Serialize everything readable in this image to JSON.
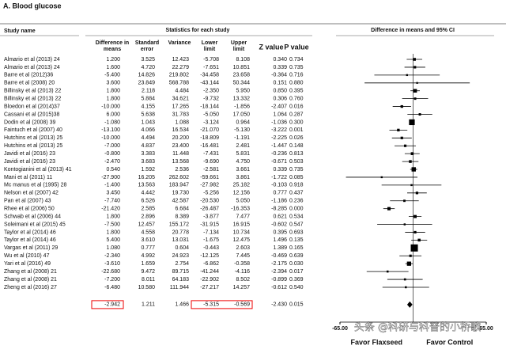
{
  "chart_data": {
    "type": "forest",
    "title": "A. Blood glucose",
    "study_header": "Study name",
    "stats_header": "Statistics for each study",
    "plot_header": "Difference in means and 95% CI",
    "columns": [
      "Difference in means",
      "Standard error",
      "Variance",
      "Lower limit",
      "Upper limit",
      "Z value",
      "P value"
    ],
    "categories": [
      "Almario et al (2013) 24",
      "Almario et al (2013) 24",
      "Barre et al (2012)36",
      "Barre et al (2008) 20",
      "Billinsky et al (2013) 22",
      "Billinsky et al (2013) 22",
      "Bloedon et al (2014)37",
      "Cassani et al (2015)38",
      "Dodin et al (2008) 39",
      "Faintuch et al (2007) 40",
      "Hutchins et al (2013) 25",
      "Hutchins et al (2013) 25",
      "Javidi et al (2016) 23",
      "Javidi et al (2016) 23",
      "Kontogianini et al (2013) 41",
      "Mani et al (2011) 11",
      "Mc manus et al (1995) 28",
      "Nelson et al (2007) 42",
      "Pan et al (2007) 43",
      "Rhee et al (2006) 50",
      "Schwab et al (2006) 44",
      "Soleimani et al (2015) 45",
      "Taylor et al (2014) 46",
      "Taylor et al (2014) 46",
      "Vargas et al (2011) 29",
      "Wu et al (2010) 47",
      "Yari et al (2016) 49",
      "Zhang et al (2008) 21",
      "Zhang et al (2008) 21",
      "Zheng et al (2016) 27"
    ],
    "rows": [
      [
        "1.200",
        "3.525",
        "12.423",
        "-5.708",
        "8.108",
        "0.340",
        "0.734"
      ],
      [
        "1.600",
        "4.720",
        "22.279",
        "-7.651",
        "10.851",
        "0.339",
        "0.735"
      ],
      [
        "-5.400",
        "14.826",
        "219.802",
        "-34.458",
        "23.658",
        "-0.364",
        "0.716"
      ],
      [
        "3.600",
        "23.849",
        "568.788",
        "-43.144",
        "50.344",
        "0.151",
        "0.880"
      ],
      [
        "1.800",
        "2.118",
        "4.484",
        "-2.350",
        "5.950",
        "0.850",
        "0.395"
      ],
      [
        "1.800",
        "5.884",
        "34.621",
        "-9.732",
        "13.332",
        "0.306",
        "0.760"
      ],
      [
        "-10.000",
        "4.155",
        "17.265",
        "-18.144",
        "-1.856",
        "-2.407",
        "0.016"
      ],
      [
        "6.000",
        "5.638",
        "31.783",
        "-5.050",
        "17.050",
        "1.064",
        "0.287"
      ],
      [
        "-1.080",
        "1.043",
        "1.088",
        "-3.124",
        "0.964",
        "-1.036",
        "0.300"
      ],
      [
        "-13.100",
        "4.066",
        "16.534",
        "-21.070",
        "-5.130",
        "-3.222",
        "0.001"
      ],
      [
        "-10.000",
        "4.494",
        "20.200",
        "-18.809",
        "-1.191",
        "-2.225",
        "0.026"
      ],
      [
        "-7.000",
        "4.837",
        "23.400",
        "-16.481",
        "2.481",
        "-1.447",
        "0.148"
      ],
      [
        "-0.800",
        "3.383",
        "11.448",
        "-7.431",
        "5.831",
        "-0.236",
        "0.813"
      ],
      [
        "-2.470",
        "3.683",
        "13.568",
        "-9.690",
        "4.750",
        "-0.671",
        "0.503"
      ],
      [
        "0.540",
        "1.592",
        "2.536",
        "-2.581",
        "3.661",
        "0.339",
        "0.735"
      ],
      [
        "-27.900",
        "16.205",
        "262.602",
        "-59.661",
        "3.861",
        "-1.722",
        "0.085"
      ],
      [
        "-1.400",
        "13.563",
        "183.947",
        "-27.982",
        "25.182",
        "-0.103",
        "0.918"
      ],
      [
        "3.450",
        "4.442",
        "19.730",
        "-5.256",
        "12.156",
        "0.777",
        "0.437"
      ],
      [
        "-7.740",
        "6.526",
        "42.587",
        "-20.530",
        "5.050",
        "-1.186",
        "0.236"
      ],
      [
        "-21.420",
        "2.585",
        "6.684",
        "-26.487",
        "-16.353",
        "-8.285",
        "0.000"
      ],
      [
        "1.800",
        "2.896",
        "8.389",
        "-3.877",
        "7.477",
        "0.621",
        "0.534"
      ],
      [
        "-7.500",
        "12.457",
        "155.172",
        "-31.915",
        "16.915",
        "-0.602",
        "0.547"
      ],
      [
        "1.800",
        "4.558",
        "20.778",
        "-7.134",
        "10.734",
        "0.395",
        "0.693"
      ],
      [
        "5.400",
        "3.610",
        "13.031",
        "-1.675",
        "12.475",
        "1.496",
        "0.135"
      ],
      [
        "1.080",
        "0.777",
        "0.604",
        "-0.443",
        "2.603",
        "1.389",
        "0.165"
      ],
      [
        "-2.340",
        "4.992",
        "24.923",
        "-12.125",
        "7.445",
        "-0.469",
        "0.639"
      ],
      [
        "-3.610",
        "1.659",
        "2.754",
        "-6.862",
        "-0.358",
        "-2.175",
        "0.030"
      ],
      [
        "-22.680",
        "9.472",
        "89.715",
        "-41.244",
        "-4.116",
        "-2.394",
        "0.017"
      ],
      [
        "-7.200",
        "8.011",
        "64.183",
        "-22.902",
        "8.502",
        "-0.899",
        "0.369"
      ],
      [
        "-6.480",
        "10.580",
        "111.944",
        "-27.217",
        "14.257",
        "-0.612",
        "0.540"
      ]
    ],
    "values": [
      1.2,
      1.6,
      -5.4,
      3.6,
      1.8,
      1.8,
      -10,
      6,
      -1.08,
      -13.1,
      -10,
      -7,
      -0.8,
      -2.47,
      0.54,
      -27.9,
      -1.4,
      3.45,
      -7.74,
      -21.42,
      1.8,
      -7.5,
      1.8,
      5.4,
      1.08,
      -2.34,
      -3.61,
      -22.68,
      -7.2,
      -6.48
    ],
    "lower": [
      -5.708,
      -7.651,
      -34.458,
      -43.144,
      -2.35,
      -9.732,
      -18.144,
      -5.05,
      -3.124,
      -21.07,
      -18.809,
      -16.481,
      -7.431,
      -9.69,
      -2.581,
      -59.661,
      -27.982,
      -5.256,
      -20.53,
      -26.487,
      -3.877,
      -31.915,
      -7.134,
      -1.675,
      -0.443,
      -12.125,
      -6.862,
      -41.244,
      -22.902,
      -27.217
    ],
    "upper": [
      8.108,
      10.851,
      23.658,
      50.344,
      5.95,
      13.332,
      -1.856,
      17.05,
      0.964,
      -5.13,
      -1.191,
      2.481,
      5.831,
      4.75,
      3.661,
      3.861,
      25.182,
      12.156,
      5.05,
      -16.353,
      7.477,
      16.915,
      10.734,
      12.475,
      2.603,
      7.445,
      -0.358,
      -4.116,
      8.502,
      14.257
    ],
    "variance": [
      12.423,
      22.279,
      219.802,
      568.788,
      4.484,
      34.621,
      17.265,
      31.783,
      1.088,
      16.534,
      20.2,
      23.4,
      11.448,
      13.568,
      2.536,
      262.602,
      183.947,
      19.73,
      42.587,
      6.684,
      8.389,
      155.172,
      20.778,
      13.031,
      0.604,
      24.923,
      2.754,
      89.715,
      64.183,
      111.944
    ],
    "summary_row": [
      "-2.942",
      "1.211",
      "1.466",
      "-5.315",
      "-0.569",
      "-2.430",
      "0.015"
    ],
    "summary": {
      "value": -2.942,
      "lower": -5.315,
      "upper": -0.569
    },
    "xlim": [
      -65,
      65
    ],
    "xticks": [
      {
        "value": -65,
        "label": "-65.00"
      },
      {
        "value": 65,
        "label": "65.00"
      }
    ],
    "xlabels": [
      "Favor Flaxseed",
      "Favor Control"
    ],
    "watermark": "头条 @科研与科普的小桥歌"
  }
}
